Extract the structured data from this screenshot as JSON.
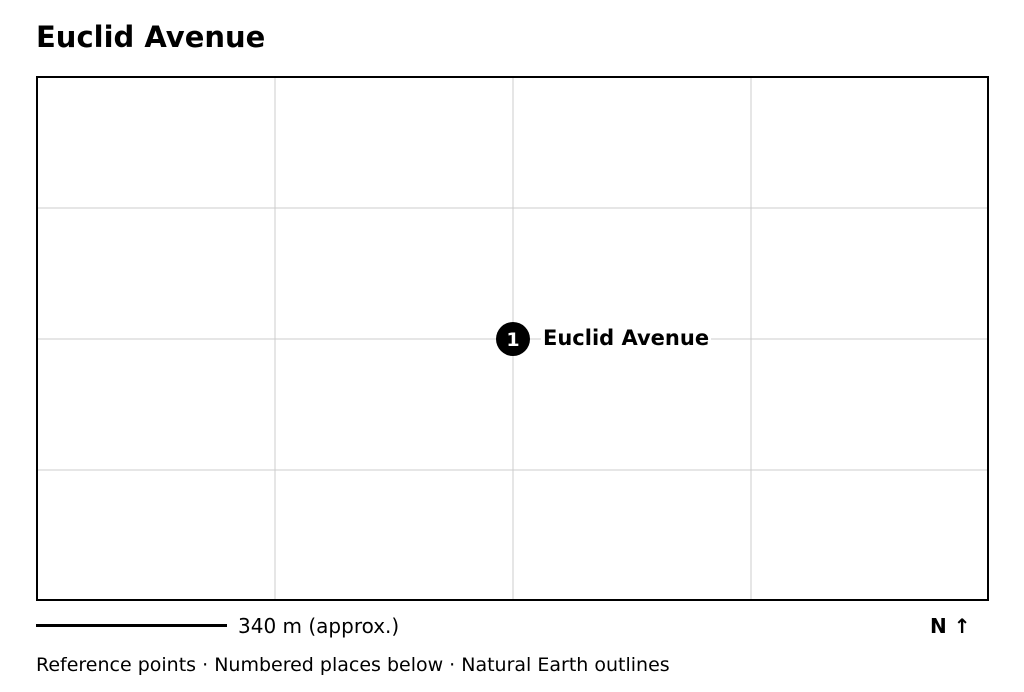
{
  "title": "Euclid Avenue",
  "map": {
    "places": [
      {
        "number": "1",
        "label": "Euclid Avenue"
      }
    ]
  },
  "scale": {
    "label": "340 m (approx.)"
  },
  "north_label": "N ↑",
  "footer": {
    "note": "Reference points · Numbered places below · Natural Earth outlines"
  }
}
